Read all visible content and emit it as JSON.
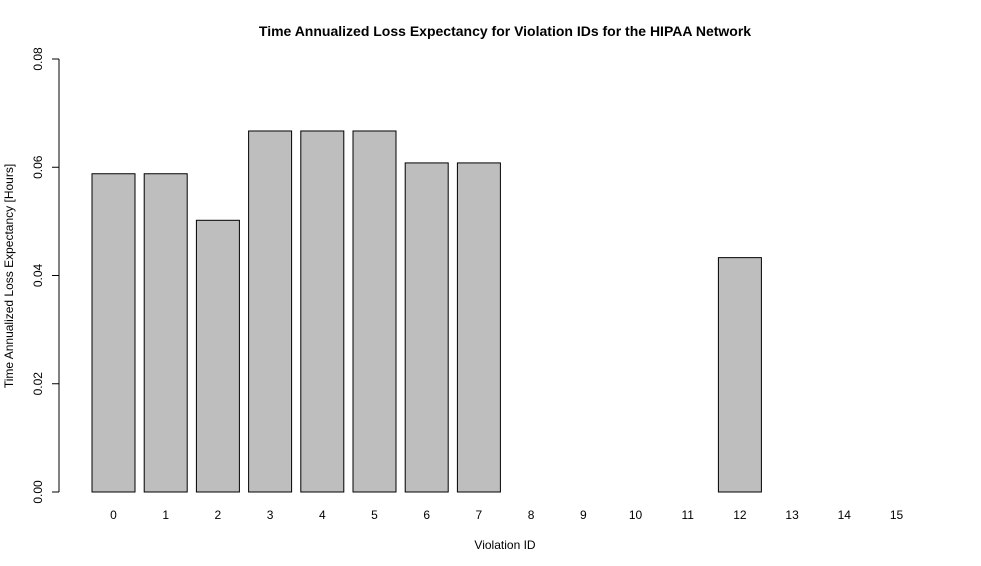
{
  "chart_data": {
    "type": "bar",
    "title": "Time Annualized Loss Expectancy for Violation IDs for the HIPAA Network",
    "xlabel": "Violation ID",
    "ylabel": "Time Annualized Loss Expectancy [Hours]",
    "categories": [
      "0",
      "1",
      "2",
      "3",
      "4",
      "5",
      "6",
      "7",
      "8",
      "9",
      "10",
      "11",
      "12",
      "13",
      "14",
      "15"
    ],
    "values": [
      0.0588,
      0.0588,
      0.0502,
      0.0667,
      0.0667,
      0.0667,
      0.0608,
      0.0608,
      0,
      0,
      0,
      0,
      0.0433,
      0,
      0,
      0
    ],
    "ylim": [
      0,
      0.08
    ],
    "yticks": [
      "0.00",
      "0.02",
      "0.04",
      "0.06",
      "0.08"
    ],
    "bar_color": "#bebebe",
    "bar_border": "#000000",
    "grid": false,
    "legend": "none"
  }
}
